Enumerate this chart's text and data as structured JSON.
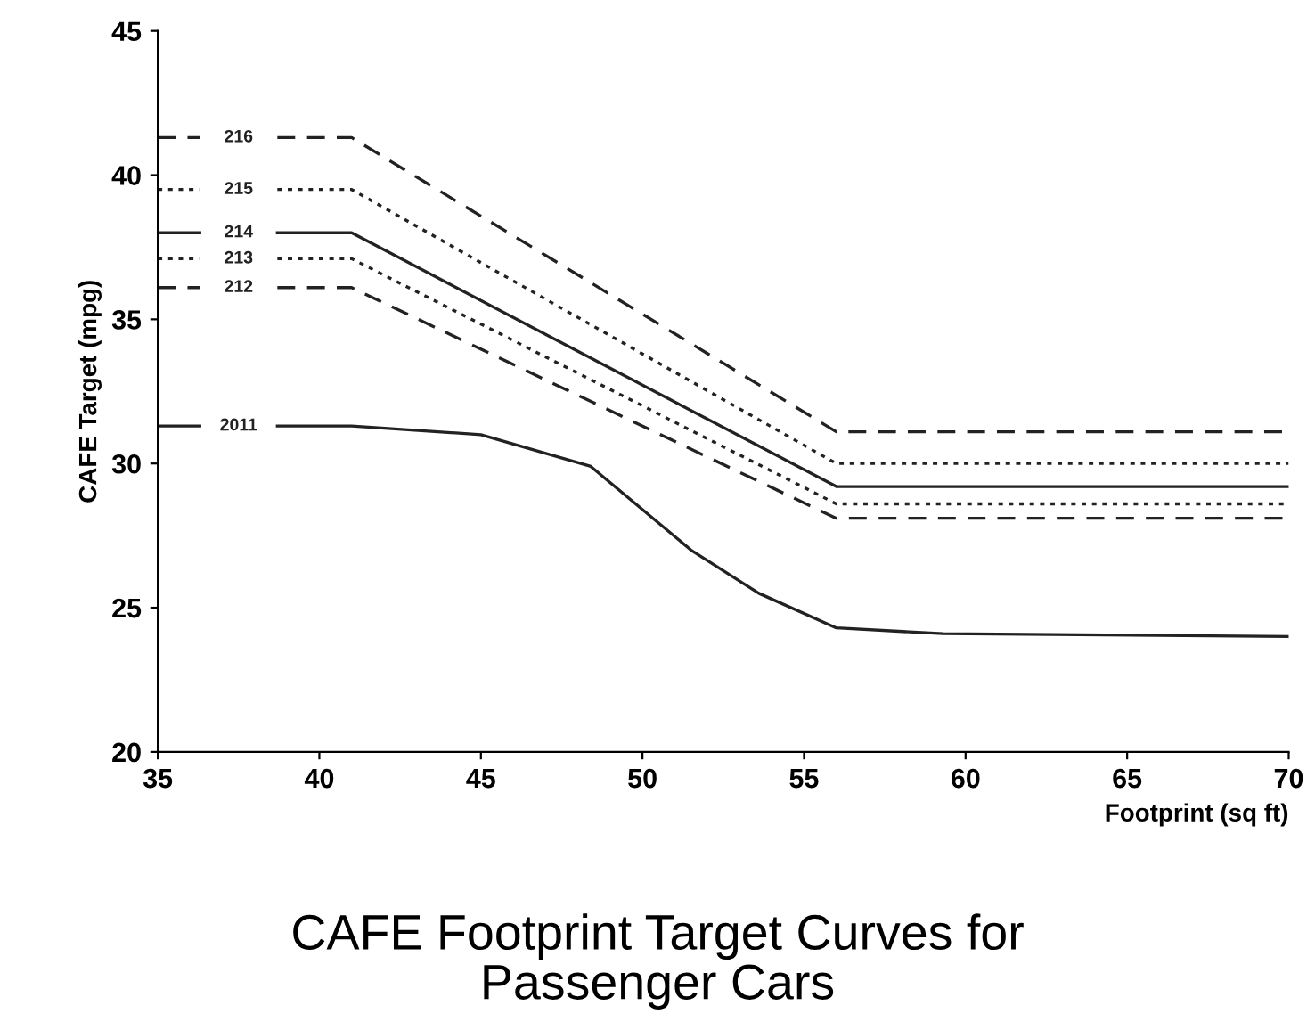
{
  "chart_data": {
    "type": "line",
    "title": "CAFE Footprint Target Curves for\nPassenger Cars",
    "xlabel": "Footprint (sq ft)",
    "ylabel": "CAFE Target (mpg)",
    "xlim": [
      35,
      70
    ],
    "ylim": [
      20,
      45
    ],
    "xticks": [
      35,
      40,
      45,
      50,
      55,
      60,
      65,
      70
    ],
    "yticks": [
      20,
      25,
      30,
      35,
      40,
      45
    ],
    "grid": false,
    "legend": false,
    "series": [
      {
        "name": "216",
        "color": "#222222",
        "line_style": "dashed",
        "x": [
          35,
          36.3,
          37.5,
          38.7,
          41,
          56,
          70
        ],
        "values": [
          41.3,
          41.3,
          null,
          41.3,
          41.3,
          31.1,
          31.1
        ]
      },
      {
        "name": "215",
        "color": "#222222",
        "line_style": "dotted",
        "x": [
          35,
          36.3,
          37.5,
          38.7,
          41,
          56,
          70
        ],
        "values": [
          39.5,
          39.5,
          null,
          39.5,
          39.5,
          30.0,
          30.0
        ]
      },
      {
        "name": "214",
        "color": "#222222",
        "line_style": "solid",
        "x": [
          35,
          36.3,
          37.5,
          38.7,
          41,
          56,
          70
        ],
        "values": [
          38.0,
          38.0,
          null,
          38.0,
          38.0,
          29.2,
          29.2
        ]
      },
      {
        "name": "213",
        "color": "#222222",
        "line_style": "dotted",
        "x": [
          35,
          36.3,
          37.5,
          38.7,
          41,
          56,
          70
        ],
        "values": [
          37.1,
          37.1,
          null,
          37.1,
          37.1,
          28.6,
          28.6
        ]
      },
      {
        "name": "212",
        "color": "#222222",
        "line_style": "dashed",
        "x": [
          35,
          36.3,
          37.5,
          38.7,
          41,
          56,
          70
        ],
        "values": [
          36.1,
          36.1,
          null,
          36.1,
          36.1,
          28.1,
          28.1
        ]
      },
      {
        "name": "2011",
        "color": "#222222",
        "line_style": "solid",
        "x": [
          35,
          36.3,
          37.5,
          38.7,
          41,
          45,
          48.4,
          51.5,
          53.6,
          56,
          59.3,
          70
        ],
        "values": [
          31.3,
          31.3,
          null,
          31.3,
          31.3,
          31.0,
          29.9,
          27.0,
          25.5,
          24.3,
          24.1,
          24.0
        ]
      }
    ]
  }
}
